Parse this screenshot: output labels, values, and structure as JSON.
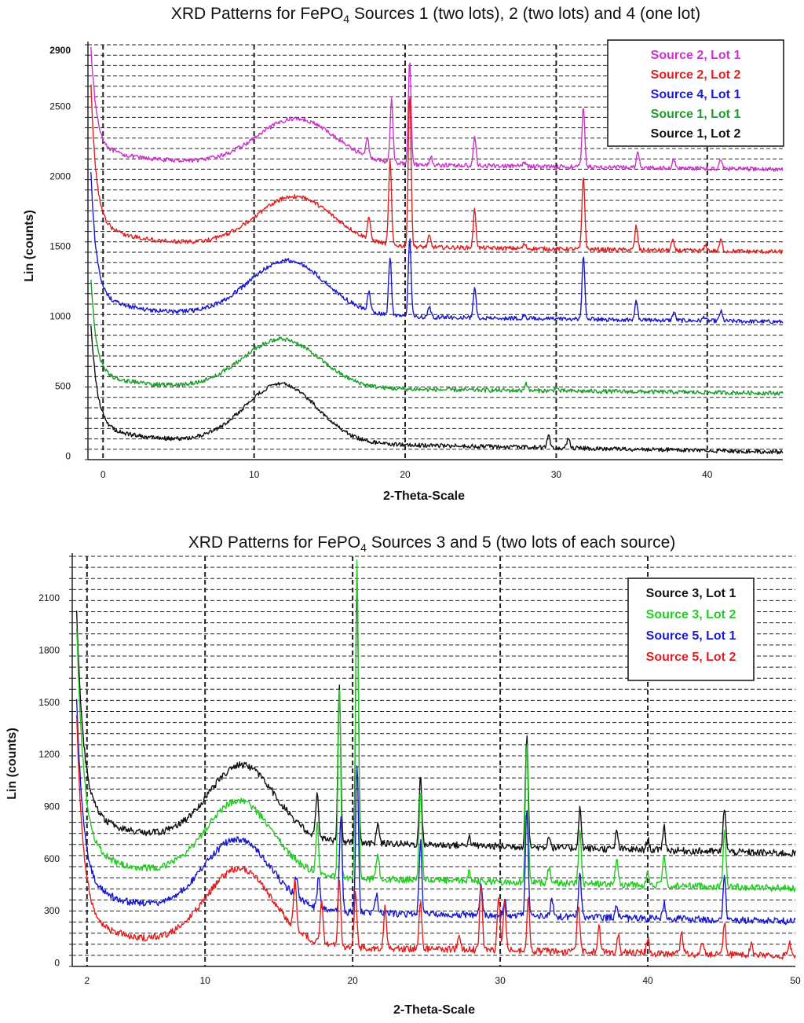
{
  "chart_data": [
    {
      "type": "line",
      "title": "XRD Patterns for FePO",
      "title_sub": "4",
      "title_rest": " Sources 1 (two lots), 2 (two lots) and 4 (one lot)",
      "xlabel": "2-Theta-Scale",
      "ylabel": "Lin (counts)",
      "xlim": [
        -1,
        45
      ],
      "ylim": [
        -25,
        2940
      ],
      "xticks": [
        0,
        10,
        20,
        30,
        40
      ],
      "yticks": [
        0,
        500,
        1000,
        1500,
        2000,
        2500,
        2900
      ],
      "legend_position": "top-right",
      "grid": "dashed",
      "series": [
        {
          "name": "Source 2, Lot 1",
          "color": "#cc33cc",
          "offset": 2050,
          "hump": {
            "center": 12.8,
            "height": 320,
            "width": 3.6
          },
          "rise": {
            "height": 700,
            "decay": 0.35
          },
          "baseline_drift": 120,
          "peaks": [
            [
              17.5,
              130
            ],
            [
              19.1,
              460
            ],
            [
              20.3,
              750
            ],
            [
              21.7,
              60
            ],
            [
              24.6,
              200
            ],
            [
              27.9,
              25
            ],
            [
              31.8,
              430
            ],
            [
              35.4,
              120
            ],
            [
              37.8,
              60
            ],
            [
              40.9,
              65
            ]
          ]
        },
        {
          "name": "Source 2, Lot 2",
          "color": "#e02020",
          "offset": 1460,
          "hump": {
            "center": 12.7,
            "height": 350,
            "width": 3.6
          },
          "rise": {
            "height": 950,
            "decay": 0.35
          },
          "baseline_drift": 130,
          "peaks": [
            [
              17.6,
              160
            ],
            [
              19.0,
              600
            ],
            [
              20.3,
              1100
            ],
            [
              21.6,
              80
            ],
            [
              24.6,
              270
            ],
            [
              27.9,
              30
            ],
            [
              31.8,
              520
            ],
            [
              35.3,
              170
            ],
            [
              37.7,
              70
            ],
            [
              39.9,
              40
            ],
            [
              40.9,
              80
            ]
          ]
        },
        {
          "name": "Source 4, Lot 1",
          "color": "#1a1acc",
          "offset": 960,
          "hump": {
            "center": 12.2,
            "height": 390,
            "width": 3.6
          },
          "rise": {
            "height": 850,
            "decay": 0.35
          },
          "baseline_drift": 130,
          "peaks": [
            [
              17.6,
              140
            ],
            [
              19.0,
              420
            ],
            [
              20.3,
              560
            ],
            [
              21.6,
              70
            ],
            [
              24.6,
              220
            ],
            [
              27.9,
              25
            ],
            [
              31.8,
              440
            ],
            [
              35.3,
              130
            ],
            [
              37.8,
              60
            ],
            [
              39.8,
              30
            ],
            [
              40.9,
              70
            ]
          ]
        },
        {
          "name": "Source 1, Lot 1",
          "color": "#1c9e2c",
          "offset": 450,
          "hump": {
            "center": 11.8,
            "height": 350,
            "width": 3.6
          },
          "rise": {
            "height": 650,
            "decay": 0.35
          },
          "baseline_drift": 100,
          "peaks": [
            [
              28.0,
              55
            ],
            [
              30.0,
              30
            ]
          ]
        },
        {
          "name": "Source 1, Lot 2",
          "color": "#111111",
          "offset": 30,
          "hump": {
            "center": 11.8,
            "height": 420,
            "width": 3.4
          },
          "rise": {
            "height": 700,
            "decay": 0.4
          },
          "baseline_drift": 180,
          "peaks": [
            [
              29.5,
              90
            ],
            [
              30.8,
              70
            ]
          ]
        }
      ]
    },
    {
      "type": "line",
      "title": "XRD Patterns for FePO",
      "title_sub": "4",
      "title_rest": " Sources 3 and 5 (two lots of each source)",
      "xlabel": "2-Theta-Scale",
      "ylabel": "Lin (counts)",
      "xlim": [
        1,
        50
      ],
      "ylim": [
        -20,
        2340
      ],
      "xticks": [
        2,
        10,
        20,
        30,
        40,
        50
      ],
      "yticks": [
        0,
        300,
        600,
        900,
        1200,
        1500,
        1800,
        2100
      ],
      "legend_position": "top-right",
      "grid": "dashed",
      "series": [
        {
          "name": "Source 3, Lot 1",
          "color": "#111111",
          "offset": 630,
          "hump": {
            "center": 12.5,
            "height": 430,
            "width": 3.2
          },
          "rise": {
            "height": 1100,
            "decay": 0.45
          },
          "baseline_drift": 200,
          "peaks": [
            [
              17.6,
              270
            ],
            [
              19.1,
              880
            ],
            [
              20.3,
              1480
            ],
            [
              21.7,
              120
            ],
            [
              24.6,
              390
            ],
            [
              27.9,
              50
            ],
            [
              31.8,
              640
            ],
            [
              33.3,
              70
            ],
            [
              35.4,
              230
            ],
            [
              37.9,
              100
            ],
            [
              40.0,
              60
            ],
            [
              41.1,
              140
            ],
            [
              45.2,
              260
            ]
          ]
        },
        {
          "name": "Source 3, Lot 2",
          "color": "#22cc22",
          "offset": 430,
          "hump": {
            "center": 12.3,
            "height": 430,
            "width": 3.2
          },
          "rise": {
            "height": 1200,
            "decay": 0.45
          },
          "baseline_drift": 180,
          "peaks": [
            [
              17.6,
              290
            ],
            [
              19.1,
              1060
            ],
            [
              20.3,
              1830
            ],
            [
              21.7,
              150
            ],
            [
              24.6,
              530
            ],
            [
              27.9,
              60
            ],
            [
              31.8,
              800
            ],
            [
              33.3,
              90
            ],
            [
              35.4,
              310
            ],
            [
              37.9,
              150
            ],
            [
              40.0,
              70
            ],
            [
              41.1,
              180
            ],
            [
              45.2,
              330
            ]
          ]
        },
        {
          "name": "Source 5, Lot 1",
          "color": "#1a1acc",
          "offset": 240,
          "hump": {
            "center": 12.2,
            "height": 410,
            "width": 3.2
          },
          "rise": {
            "height": 1000,
            "decay": 0.45
          },
          "baseline_drift": 160,
          "peaks": [
            [
              16.2,
              120
            ],
            [
              17.7,
              190
            ],
            [
              19.2,
              560
            ],
            [
              20.3,
              860
            ],
            [
              21.6,
              110
            ],
            [
              24.6,
              420
            ],
            [
              28.7,
              170
            ],
            [
              30.3,
              90
            ],
            [
              31.8,
              620
            ],
            [
              33.5,
              100
            ],
            [
              35.4,
              260
            ],
            [
              37.9,
              80
            ],
            [
              41.1,
              90
            ],
            [
              45.2,
              260
            ]
          ]
        },
        {
          "name": "Source 5, Lot 2",
          "color": "#e02020",
          "offset": 40,
          "hump": {
            "center": 12.3,
            "height": 440,
            "width": 3.2
          },
          "rise": {
            "height": 1100,
            "decay": 0.45
          },
          "baseline_drift": 160,
          "peaks": [
            [
              16.1,
              280
            ],
            [
              17.9,
              240
            ],
            [
              19.1,
              390
            ],
            [
              20.2,
              320
            ],
            [
              22.2,
              240
            ],
            [
              24.6,
              280
            ],
            [
              27.2,
              80
            ],
            [
              28.7,
              390
            ],
            [
              29.9,
              310
            ],
            [
              30.3,
              280
            ],
            [
              31.9,
              300
            ],
            [
              35.3,
              280
            ],
            [
              36.7,
              140
            ],
            [
              38.0,
              110
            ],
            [
              40.0,
              80
            ],
            [
              42.3,
              120
            ],
            [
              43.7,
              70
            ],
            [
              45.2,
              180
            ],
            [
              47.0,
              60
            ],
            [
              49.6,
              70
            ]
          ]
        }
      ]
    }
  ]
}
